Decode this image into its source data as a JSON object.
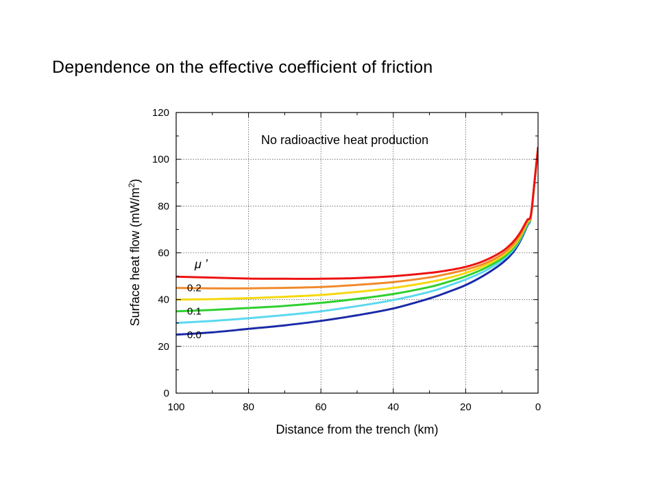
{
  "slide": {
    "title": "Dependence on the effective coefficient of friction"
  },
  "chart_data": {
    "type": "line",
    "xlabel": "Distance from the trench (km)",
    "ylabel": "Surface heat flow (mW/m",
    "ylabel_sup": "2",
    "ylabel_close": ")",
    "xlim": [
      100,
      0
    ],
    "ylim": [
      0,
      120
    ],
    "x_ticks": [
      100,
      80,
      60,
      40,
      20,
      0
    ],
    "y_ticks": [
      0,
      20,
      40,
      60,
      80,
      100,
      120
    ],
    "grid": true,
    "annotation": "No radioactive heat production",
    "legend_title": "μ ’",
    "legend_labels": [
      {
        "text": "0.2",
        "series": 1
      },
      {
        "text": "0.1",
        "series": 3
      },
      {
        "text": "0.0",
        "series": 5
      }
    ],
    "series": [
      {
        "color": "#ee1111",
        "x": [
          100,
          90,
          80,
          70,
          60,
          50,
          40,
          30,
          25,
          20,
          15,
          10,
          7,
          5,
          3,
          2,
          1,
          0
        ],
        "y": [
          49.8,
          49.4,
          49.0,
          48.9,
          48.9,
          49.2,
          50.0,
          51.4,
          52.5,
          54.0,
          56.5,
          60.5,
          64.5,
          68.5,
          74.0,
          76.0,
          90.0,
          105.0
        ]
      },
      {
        "color": "#f08a2a",
        "x": [
          100,
          90,
          80,
          70,
          60,
          50,
          40,
          30,
          25,
          20,
          15,
          10,
          7,
          5,
          3,
          2,
          1,
          0
        ],
        "y": [
          45.0,
          44.8,
          44.8,
          45.0,
          45.4,
          46.3,
          47.5,
          49.5,
          51.0,
          52.8,
          55.3,
          59.3,
          63.3,
          67.5,
          73.5,
          75.8,
          90.0,
          105.0
        ]
      },
      {
        "color": "#f5d80f",
        "x": [
          100,
          90,
          80,
          70,
          60,
          50,
          40,
          30,
          25,
          20,
          15,
          10,
          7,
          5,
          3,
          2,
          1,
          0
        ],
        "y": [
          40.0,
          40.2,
          40.6,
          41.2,
          42.0,
          43.3,
          45.0,
          47.5,
          49.2,
          51.4,
          54.3,
          58.5,
          62.5,
          66.8,
          73.0,
          75.6,
          90.0,
          105.0
        ]
      },
      {
        "color": "#2ed02e",
        "x": [
          100,
          90,
          80,
          70,
          60,
          50,
          40,
          30,
          25,
          20,
          15,
          10,
          7,
          5,
          3,
          2,
          1,
          0
        ],
        "y": [
          35.0,
          35.6,
          36.4,
          37.3,
          38.6,
          40.3,
          42.4,
          45.4,
          47.5,
          50.0,
          53.2,
          57.6,
          61.7,
          66.0,
          72.5,
          75.4,
          90.0,
          105.0
        ]
      },
      {
        "color": "#5ad8f0",
        "x": [
          100,
          90,
          80,
          70,
          60,
          50,
          40,
          30,
          25,
          20,
          15,
          10,
          7,
          5,
          3,
          2,
          1,
          0
        ],
        "y": [
          30.0,
          30.9,
          32.0,
          33.4,
          35.0,
          37.2,
          39.8,
          43.3,
          45.8,
          48.6,
          52.0,
          56.7,
          61.0,
          65.5,
          72.0,
          75.2,
          90.0,
          105.0
        ]
      },
      {
        "color": "#1a2aa8",
        "x": [
          100,
          90,
          80,
          70,
          60,
          50,
          40,
          30,
          25,
          20,
          15,
          10,
          7,
          5,
          3,
          2,
          1,
          0
        ],
        "y": [
          25.0,
          26.0,
          27.5,
          29.0,
          30.9,
          33.3,
          36.2,
          40.5,
          43.2,
          46.2,
          50.3,
          55.5,
          60.0,
          64.8,
          71.5,
          75.0,
          90.0,
          105.0
        ]
      }
    ]
  }
}
